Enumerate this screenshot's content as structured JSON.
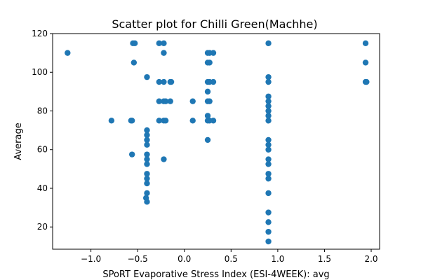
{
  "chart_data": {
    "type": "scatter",
    "title": "Scatter plot for Chilli Green(Machhe)",
    "xlabel": "SPoRT Evaporative Stress Index (ESI-4WEEK): avg",
    "ylabel": "Average",
    "xlim": [
      -1.41,
      2.09
    ],
    "ylim": [
      8.5,
      120
    ],
    "xticks": [
      -1.0,
      -0.5,
      0.0,
      0.5,
      1.0,
      1.5,
      2.0
    ],
    "xtick_labels": [
      "−1.0",
      "−0.5",
      "0.0",
      "0.5",
      "1.0",
      "1.5",
      "2.0"
    ],
    "yticks": [
      20,
      40,
      60,
      80,
      100,
      120
    ],
    "ytick_labels": [
      "20",
      "40",
      "60",
      "80",
      "100",
      "120"
    ],
    "grid": false,
    "marker_color": "#1f77b4",
    "points": [
      [
        -1.25,
        110
      ],
      [
        -0.78,
        75
      ],
      [
        -0.57,
        75
      ],
      [
        -0.56,
        75
      ],
      [
        -0.56,
        57.5
      ],
      [
        -0.55,
        115
      ],
      [
        -0.53,
        115
      ],
      [
        -0.54,
        105
      ],
      [
        -0.4,
        97.5
      ],
      [
        -0.4,
        70
      ],
      [
        -0.4,
        67.5
      ],
      [
        -0.4,
        65
      ],
      [
        -0.4,
        62.5
      ],
      [
        -0.4,
        57.5
      ],
      [
        -0.4,
        55
      ],
      [
        -0.4,
        52.5
      ],
      [
        -0.4,
        47.5
      ],
      [
        -0.4,
        45
      ],
      [
        -0.4,
        42.5
      ],
      [
        -0.4,
        37.5
      ],
      [
        -0.4,
        33
      ],
      [
        -0.41,
        35
      ],
      [
        -0.27,
        115
      ],
      [
        -0.27,
        95
      ],
      [
        -0.27,
        85
      ],
      [
        -0.27,
        75
      ],
      [
        -0.22,
        115
      ],
      [
        -0.22,
        110
      ],
      [
        -0.22,
        95
      ],
      [
        -0.22,
        85
      ],
      [
        -0.22,
        75
      ],
      [
        -0.22,
        55
      ],
      [
        -0.2,
        85
      ],
      [
        -0.2,
        75
      ],
      [
        -0.15,
        95
      ],
      [
        -0.14,
        95
      ],
      [
        -0.15,
        85
      ],
      [
        0.09,
        85
      ],
      [
        0.09,
        75
      ],
      [
        0.25,
        110
      ],
      [
        0.25,
        105
      ],
      [
        0.25,
        95
      ],
      [
        0.25,
        90
      ],
      [
        0.25,
        85
      ],
      [
        0.25,
        77.5
      ],
      [
        0.25,
        75
      ],
      [
        0.25,
        65
      ],
      [
        0.27,
        110
      ],
      [
        0.27,
        105
      ],
      [
        0.27,
        95
      ],
      [
        0.27,
        85
      ],
      [
        0.27,
        75
      ],
      [
        0.31,
        110
      ],
      [
        0.31,
        95
      ],
      [
        0.31,
        75
      ],
      [
        0.9,
        115
      ],
      [
        0.9,
        97.5
      ],
      [
        0.9,
        95
      ],
      [
        0.9,
        87.5
      ],
      [
        0.9,
        85
      ],
      [
        0.9,
        82.5
      ],
      [
        0.9,
        80
      ],
      [
        0.9,
        77.5
      ],
      [
        0.9,
        75
      ],
      [
        0.9,
        65
      ],
      [
        0.9,
        62.5
      ],
      [
        0.9,
        60
      ],
      [
        0.9,
        55
      ],
      [
        0.9,
        52.5
      ],
      [
        0.9,
        47.5
      ],
      [
        0.9,
        45
      ],
      [
        0.9,
        37.5
      ],
      [
        0.9,
        27.5
      ],
      [
        0.9,
        22.5
      ],
      [
        0.9,
        17.5
      ],
      [
        0.9,
        12.5
      ],
      [
        1.94,
        115
      ],
      [
        1.94,
        105
      ],
      [
        1.94,
        95
      ],
      [
        1.95,
        95
      ]
    ]
  }
}
